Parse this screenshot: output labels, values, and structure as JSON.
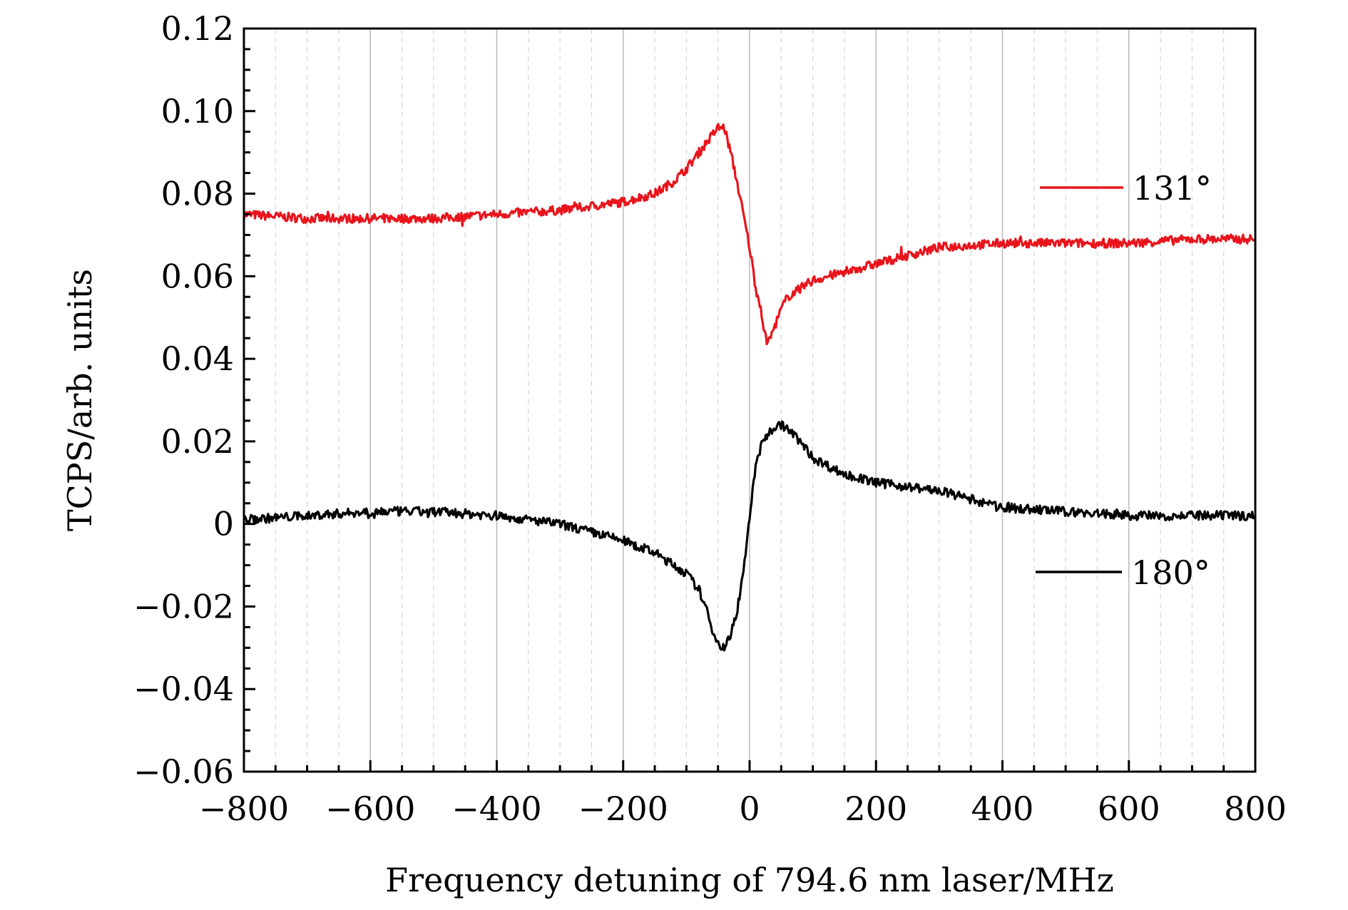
{
  "chart_data": {
    "type": "line",
    "xlabel": "Frequency detuning of 794.6 nm laser/MHz",
    "ylabel": "TCPS/arb. units",
    "xlim": [
      -800,
      800
    ],
    "ylim": [
      -0.06,
      0.12
    ],
    "x_ticks": [
      -800,
      -600,
      -400,
      -200,
      0,
      200,
      400,
      600,
      800
    ],
    "x_tick_labels": [
      "−800",
      "−600",
      "−400",
      "−200",
      "0",
      "200",
      "400",
      "600",
      "800"
    ],
    "y_ticks": [
      -0.06,
      -0.04,
      -0.02,
      0,
      0.02,
      0.04,
      0.06,
      0.08,
      0.1,
      0.12
    ],
    "y_tick_labels": [
      "−0.06",
      "−0.04",
      "−0.02",
      "0",
      "0.02",
      "0.04",
      "0.06",
      "0.08",
      "0.10",
      "0.12"
    ],
    "grid": "vertical dashed",
    "legend_placement": "right, inline labels",
    "series": [
      {
        "name": "131°",
        "color": "#e8141c",
        "x": [
          -800,
          -700,
          -600,
          -500,
          -400,
          -300,
          -250,
          -200,
          -150,
          -120,
          -100,
          -80,
          -60,
          -50,
          -40,
          -30,
          -20,
          -10,
          0,
          10,
          20,
          25,
          30,
          40,
          50,
          60,
          80,
          100,
          150,
          200,
          250,
          300,
          350,
          400,
          500,
          600,
          700,
          800
        ],
        "values": [
          0.075,
          0.074,
          0.074,
          0.074,
          0.075,
          0.076,
          0.077,
          0.078,
          0.08,
          0.083,
          0.086,
          0.09,
          0.094,
          0.096,
          0.096,
          0.09,
          0.083,
          0.075,
          0.067,
          0.057,
          0.05,
          0.045,
          0.044,
          0.048,
          0.052,
          0.055,
          0.057,
          0.059,
          0.061,
          0.063,
          0.065,
          0.067,
          0.0675,
          0.068,
          0.068,
          0.068,
          0.069,
          0.069
        ]
      },
      {
        "name": "180°",
        "color": "#000000",
        "x": [
          -800,
          -700,
          -600,
          -500,
          -400,
          -300,
          -250,
          -200,
          -150,
          -120,
          -100,
          -80,
          -70,
          -60,
          -50,
          -40,
          -30,
          -20,
          -10,
          0,
          10,
          20,
          30,
          40,
          50,
          60,
          80,
          100,
          150,
          200,
          250,
          300,
          350,
          400,
          500,
          600,
          700,
          800
        ],
        "values": [
          0.001,
          0.002,
          0.003,
          0.003,
          0.002,
          0.0,
          -0.002,
          -0.004,
          -0.007,
          -0.01,
          -0.012,
          -0.016,
          -0.02,
          -0.025,
          -0.029,
          -0.03,
          -0.027,
          -0.021,
          -0.012,
          0.002,
          0.014,
          0.02,
          0.022,
          0.0235,
          0.024,
          0.023,
          0.02,
          0.016,
          0.012,
          0.01,
          0.009,
          0.008,
          0.006,
          0.004,
          0.003,
          0.002,
          0.002,
          0.002
        ]
      }
    ]
  }
}
